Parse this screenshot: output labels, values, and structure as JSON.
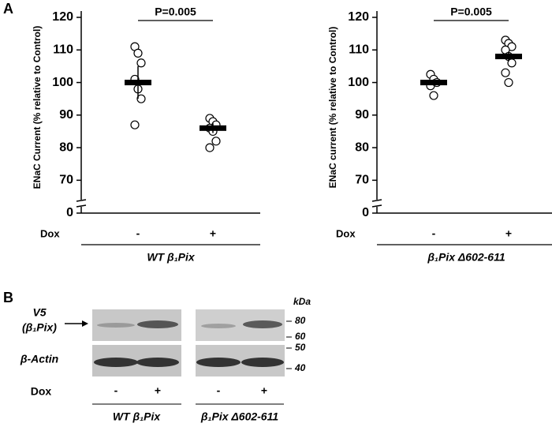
{
  "panel_a": "A",
  "chart_data": [
    {
      "type": "dot",
      "ylabel": "ENaC Current (% relative to Control)",
      "xlabel": "Dox",
      "categories": [
        "-",
        "+"
      ],
      "group_label": "WT β₁Pix",
      "annotation": "P=0.005",
      "ylim": [
        0,
        120
      ],
      "ybreak": [
        0,
        65
      ],
      "yticks": [
        0,
        70,
        80,
        90,
        100,
        110,
        120
      ],
      "groups": [
        {
          "values": [
            111,
            109,
            106,
            101,
            98,
            95,
            87
          ],
          "mean": 100,
          "error": 5
        },
        {
          "values": [
            89,
            88,
            87,
            86,
            85,
            82,
            80
          ],
          "mean": 86,
          "error": 1.5
        }
      ]
    },
    {
      "type": "dot",
      "ylabel": "ENaC current (% relative to Control)",
      "xlabel": "Dox",
      "categories": [
        "-",
        "+"
      ],
      "group_label": "β₁Pix Δ602-611",
      "annotation": "P=0.005",
      "ylim": [
        0,
        120
      ],
      "ybreak": [
        0,
        65
      ],
      "yticks": [
        0,
        70,
        80,
        90,
        100,
        110,
        120
      ],
      "groups": [
        {
          "values": [
            102.5,
            101,
            100,
            99,
            96
          ],
          "mean": 100,
          "error": 1
        },
        {
          "values": [
            113,
            112,
            111,
            110,
            108,
            106,
            103,
            100
          ],
          "mean": 108,
          "error": 1.5
        }
      ]
    }
  ],
  "blot": {
    "panel": "B",
    "v5": "V5",
    "v5_sub": "(β₁Pix)",
    "actin": "β-Actin",
    "kda": "kDa",
    "markers": [
      80,
      60,
      50,
      40
    ],
    "dox": "Dox",
    "lanes": [
      "-",
      "+",
      "-",
      "+"
    ],
    "groups": [
      "WT β₁Pix",
      "β₁Pix Δ602-611"
    ]
  }
}
